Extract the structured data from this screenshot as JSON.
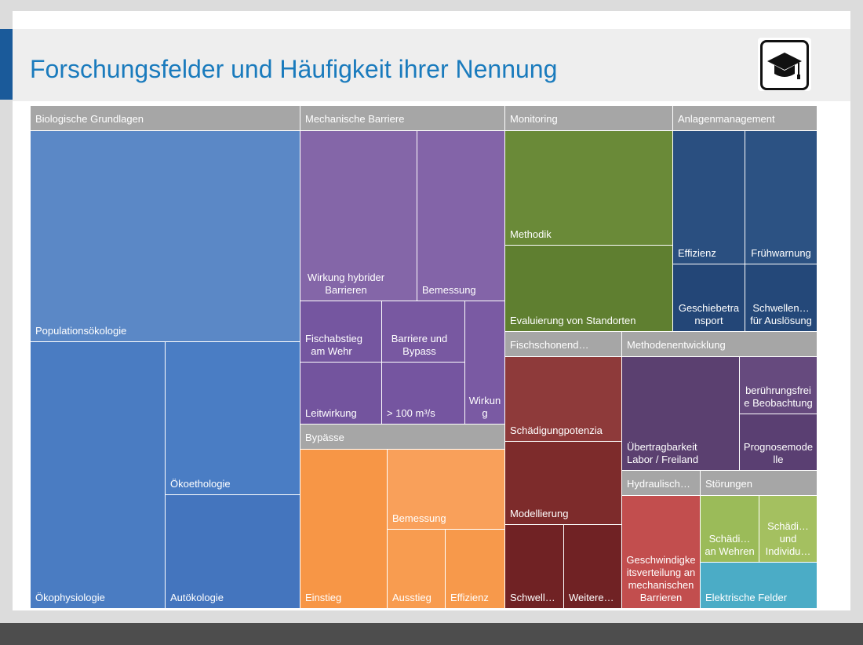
{
  "page": {
    "title": "Forschungsfelder und Häufigkeit ihrer Nennung",
    "logo_icon": "graduation-cap-icon"
  },
  "chart_data": {
    "type": "treemap",
    "title": "Forschungsfelder und Häufigkeit ihrer Nennung",
    "groups": [
      {
        "name": "Biologische Grundlagen",
        "color": "#4f81bd",
        "items": [
          {
            "label": "Populationsökologie",
            "value": 42
          },
          {
            "label": "Ökophysiologie",
            "value": 20
          },
          {
            "label": "Ökoethologie",
            "value": 12
          },
          {
            "label": "Autökologie",
            "value": 9
          }
        ]
      },
      {
        "name": "Mechanische Barriere",
        "color": "#8064a2",
        "items": [
          {
            "label": "Wirkung hybrider Barrieren",
            "value": 9
          },
          {
            "label": "Bemessung",
            "value": 6
          },
          {
            "label": "Fischabstieg am Wehr",
            "value": 3
          },
          {
            "label": "Barriere und Bypass",
            "value": 3
          },
          {
            "label": "Leitwirkung",
            "value": 3
          },
          {
            "label": "> 100 m³/s",
            "value": 3
          },
          {
            "label": "Wirkung",
            "value": 2
          }
        ]
      },
      {
        "name": "Bypässe",
        "color": "#f79646",
        "items": [
          {
            "label": "Einstieg",
            "value": 7
          },
          {
            "label": "Bemessung",
            "value": 5
          },
          {
            "label": "Ausstieg",
            "value": 3
          },
          {
            "label": "Effizienz",
            "value": 3
          }
        ]
      },
      {
        "name": "Monitoring",
        "color": "#76923c",
        "items": [
          {
            "label": "Methodik",
            "value": 9
          },
          {
            "label": "Evaluierung von Standorten",
            "value": 7
          }
        ]
      },
      {
        "name": "Anlagenmanagement",
        "color": "#1f497d",
        "items": [
          {
            "label": "Effizienz",
            "value": 3
          },
          {
            "label": "Frühwarnung",
            "value": 3
          },
          {
            "label": "Geschiebetransport",
            "value": 2
          },
          {
            "label": "Schwellen… für Auslösung",
            "value": 2
          }
        ]
      },
      {
        "name": "Fischschonend…",
        "color": "#953735",
        "items": [
          {
            "label": "Schädigungpotenzia",
            "value": 4
          },
          {
            "label": "Modellierung",
            "value": 3
          },
          {
            "label": "Schwell…",
            "value": 2
          },
          {
            "label": "Weitere…",
            "value": 2
          }
        ]
      },
      {
        "name": "Methodenentwicklung",
        "color": "#5f497a",
        "items": [
          {
            "label": "Übertragbarkeit Labor / Freiland",
            "value": 4
          },
          {
            "label": "berührungsfreie Beobachtung",
            "value": 2
          },
          {
            "label": "Prognosemodelle",
            "value": 2
          }
        ]
      },
      {
        "name": "Hydraulisch…",
        "color": "#c0504d",
        "items": [
          {
            "label": "Geschwindigkeitsverteilung an mechanischen Barrieren",
            "value": 3
          }
        ]
      },
      {
        "name": "Störungen",
        "color": "#9bbb59",
        "items": [
          {
            "label": "Schädi… an Wehren",
            "value": 1
          },
          {
            "label": "Schädi… und Individu…",
            "value": 1
          },
          {
            "label": "Elektrische Felder",
            "value": 1
          }
        ]
      }
    ]
  }
}
